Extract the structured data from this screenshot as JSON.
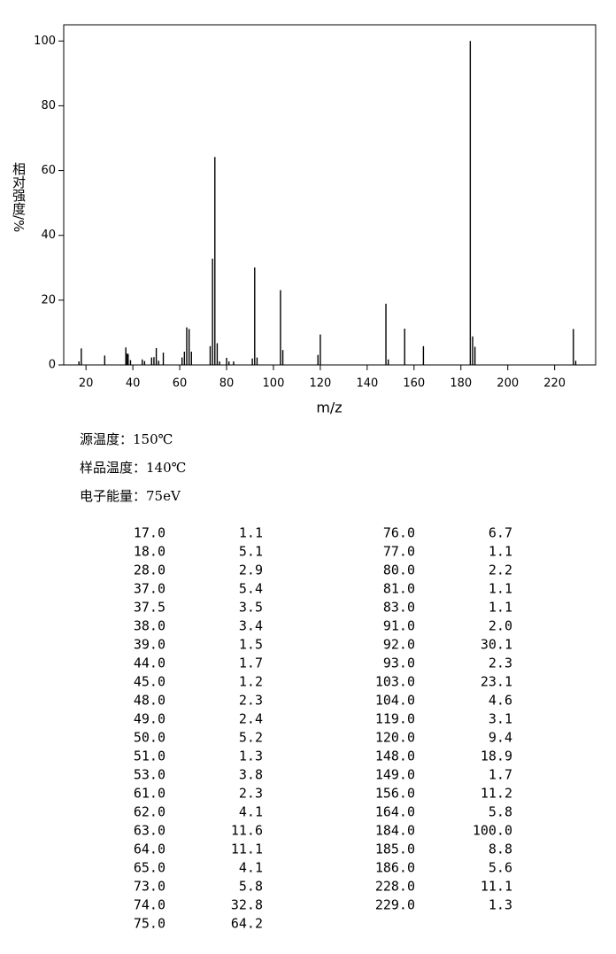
{
  "chart_data": {
    "type": "bar",
    "x_label": "m/z",
    "y_label": "相对强度/%",
    "x": [
      17,
      18,
      28,
      37,
      37.5,
      38,
      39,
      44,
      45,
      48,
      49,
      50,
      51,
      53,
      61,
      62,
      63,
      64,
      65,
      73,
      74,
      75,
      76,
      77,
      80,
      81,
      83,
      91,
      92,
      93,
      103,
      104,
      119,
      120,
      148,
      149,
      156,
      164,
      184,
      185,
      186,
      228,
      229
    ],
    "values": [
      1.1,
      5.1,
      2.9,
      5.4,
      3.5,
      3.4,
      1.5,
      1.7,
      1.2,
      2.3,
      2.4,
      5.2,
      1.3,
      3.8,
      2.3,
      4.1,
      11.6,
      11.1,
      4.1,
      5.8,
      32.8,
      64.2,
      6.7,
      1.1,
      2.2,
      1.1,
      1.1,
      2.0,
      30.1,
      2.3,
      23.1,
      4.6,
      3.1,
      9.4,
      18.9,
      1.7,
      11.2,
      5.8,
      100.0,
      8.8,
      5.6,
      11.1,
      1.3
    ],
    "color": "#000000",
    "xlim": [
      10.5,
      237.5
    ],
    "xticks": [
      20,
      40,
      60,
      80,
      100,
      120,
      140,
      160,
      180,
      200,
      220
    ],
    "ylim": [
      0,
      105
    ],
    "yticks": [
      0,
      20,
      40,
      60,
      80,
      100
    ]
  },
  "conditions": [
    "源温度：150℃",
    "样品温度：140℃",
    "电子能量：75eV"
  ],
  "peak_table": {
    "columns": [
      [
        [
          "17.0",
          "1.1"
        ],
        [
          "18.0",
          "5.1"
        ],
        [
          "28.0",
          "2.9"
        ],
        [
          "37.0",
          "5.4"
        ],
        [
          "37.5",
          "3.5"
        ],
        [
          "38.0",
          "3.4"
        ],
        [
          "39.0",
          "1.5"
        ],
        [
          "44.0",
          "1.7"
        ],
        [
          "45.0",
          "1.2"
        ],
        [
          "48.0",
          "2.3"
        ],
        [
          "49.0",
          "2.4"
        ],
        [
          "50.0",
          "5.2"
        ],
        [
          "51.0",
          "1.3"
        ],
        [
          "53.0",
          "3.8"
        ],
        [
          "61.0",
          "2.3"
        ],
        [
          "62.0",
          "4.1"
        ],
        [
          "63.0",
          "11.6"
        ],
        [
          "64.0",
          "11.1"
        ],
        [
          "65.0",
          "4.1"
        ],
        [
          "73.0",
          "5.8"
        ],
        [
          "74.0",
          "32.8"
        ],
        [
          "75.0",
          "64.2"
        ]
      ],
      [
        [
          "76.0",
          "6.7"
        ],
        [
          "77.0",
          "1.1"
        ],
        [
          "80.0",
          "2.2"
        ],
        [
          "81.0",
          "1.1"
        ],
        [
          "83.0",
          "1.1"
        ],
        [
          "91.0",
          "2.0"
        ],
        [
          "92.0",
          "30.1"
        ],
        [
          "93.0",
          "2.3"
        ],
        [
          "103.0",
          "23.1"
        ],
        [
          "104.0",
          "4.6"
        ],
        [
          "119.0",
          "3.1"
        ],
        [
          "120.0",
          "9.4"
        ],
        [
          "148.0",
          "18.9"
        ],
        [
          "149.0",
          "1.7"
        ],
        [
          "156.0",
          "11.2"
        ],
        [
          "164.0",
          "5.8"
        ],
        [
          "184.0",
          "100.0"
        ],
        [
          "185.0",
          "8.8"
        ],
        [
          "186.0",
          "5.6"
        ],
        [
          "228.0",
          "11.1"
        ],
        [
          "229.0",
          "1.3"
        ]
      ]
    ]
  }
}
